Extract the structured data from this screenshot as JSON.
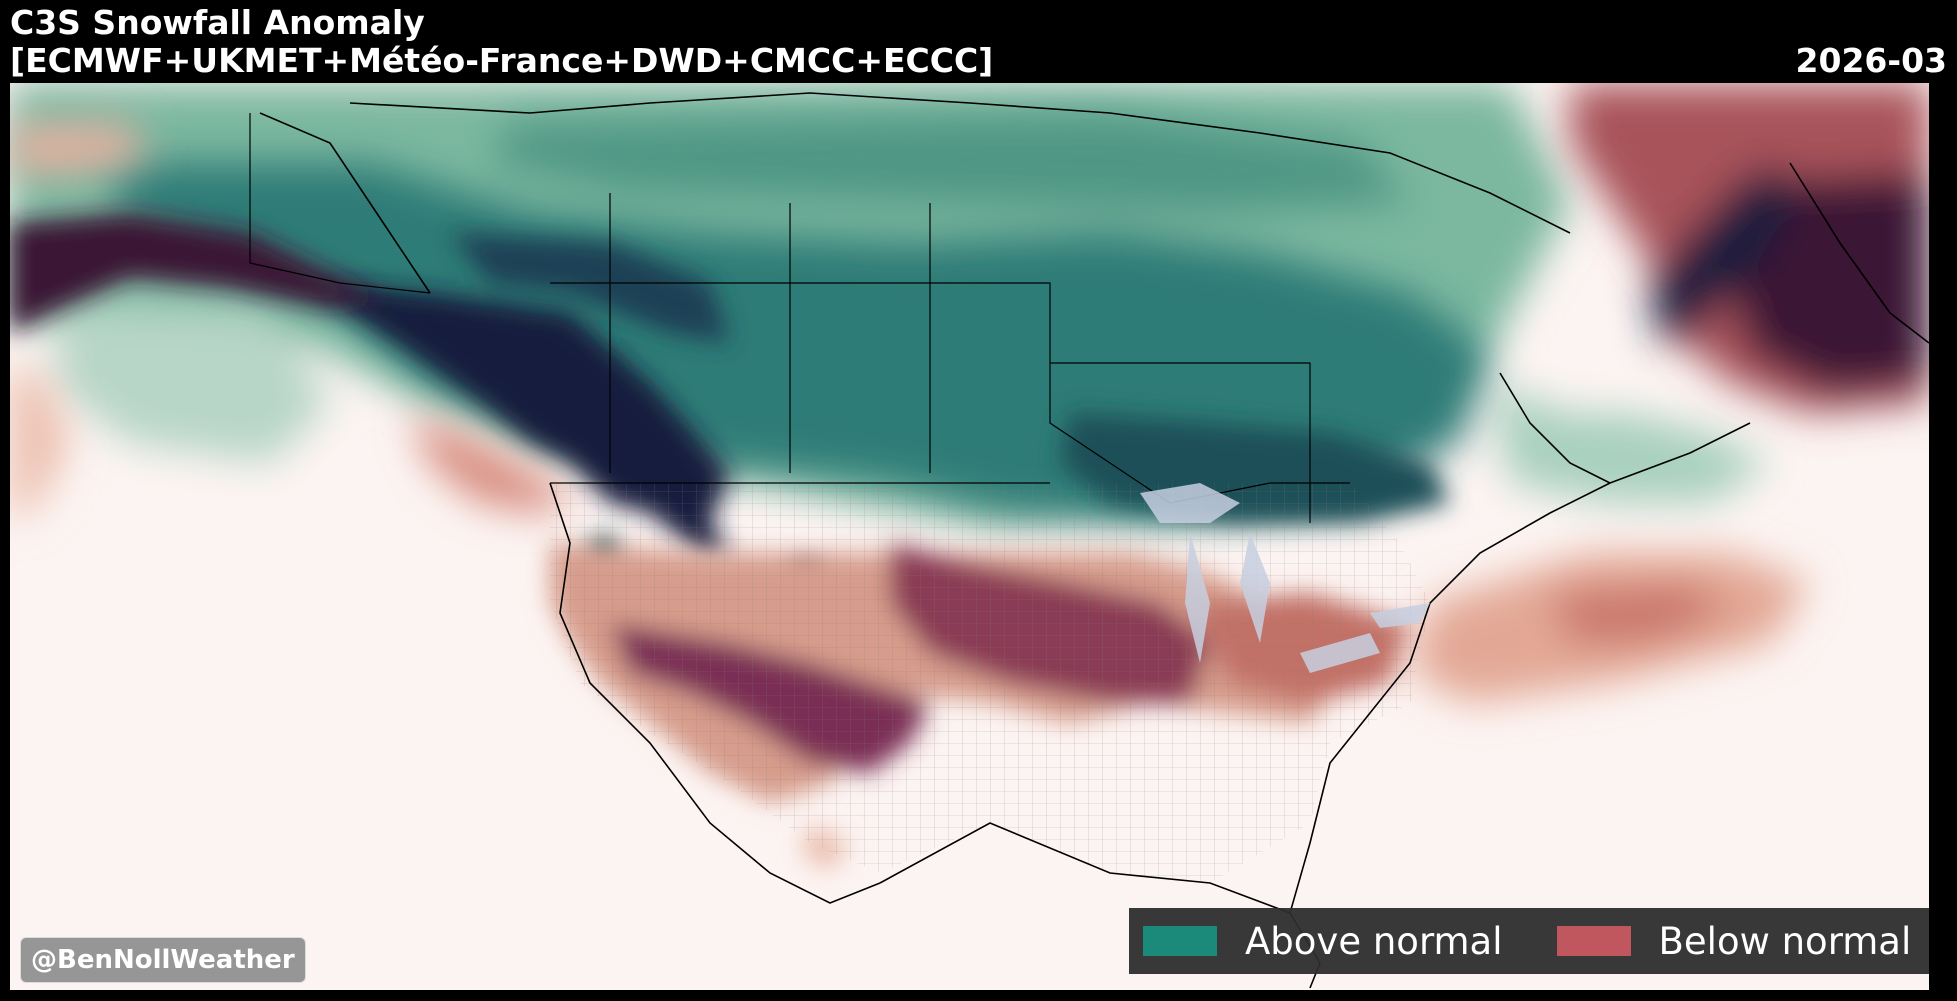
{
  "header": {
    "title_line1": "C3S Snowfall Anomaly",
    "title_line2": "[ECMWF+UKMET+Météo-France+DWD+CMCC+ECCC]",
    "date": "2026-03"
  },
  "legend": {
    "above_label": "Above normal",
    "below_label": "Below normal",
    "above_color": "#1b8a7a",
    "below_color": "#c0575f"
  },
  "credit": "@BenNollWeather",
  "palette": {
    "background": "#000000",
    "land_neutral": "#fcf4f2",
    "above_strong": "#161a3d",
    "above_mid": "#1d5e63",
    "above_light": "#6aa893",
    "below_light": "#e9b8a6",
    "below_mid": "#a8525a",
    "below_strong": "#3b1335"
  }
}
